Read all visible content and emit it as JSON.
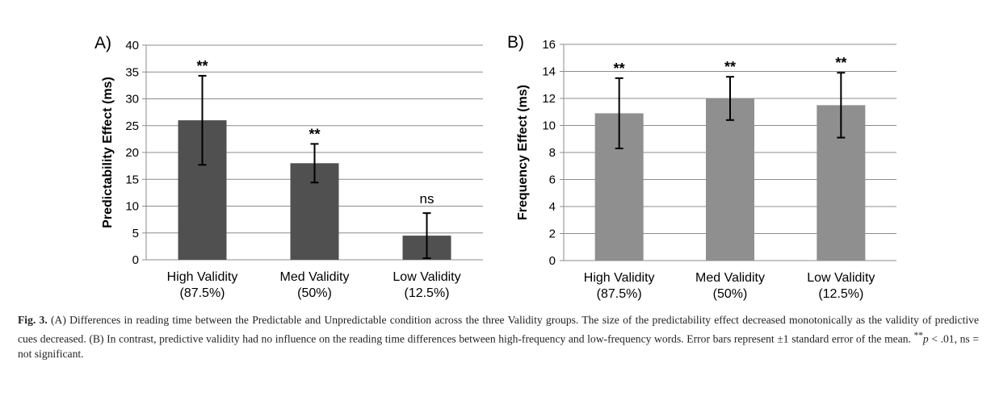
{
  "chart_data": [
    {
      "type": "bar",
      "panel": "A)",
      "ylabel": "Predictability Effect (ms)",
      "categories": [
        [
          "High Validity",
          "(87.5%)"
        ],
        [
          "Med Validity",
          "(50%)"
        ],
        [
          "Low Validity",
          "(12.5%)"
        ]
      ],
      "values": [
        26,
        18,
        4.5
      ],
      "errors": [
        8.3,
        3.6,
        4.2
      ],
      "significance": [
        "**",
        "**",
        "ns"
      ],
      "ylim": [
        0,
        40
      ],
      "yticks": [
        0,
        5,
        10,
        15,
        20,
        25,
        30,
        35,
        40
      ],
      "grid": true,
      "bar_color": "#505050"
    },
    {
      "type": "bar",
      "panel": "B)",
      "ylabel": "Frequency Effect (ms)",
      "categories": [
        [
          "High Validity",
          "(87.5%)"
        ],
        [
          "Med Validity",
          "(50%)"
        ],
        [
          "Low Validity",
          "(12.5%)"
        ]
      ],
      "values": [
        10.9,
        12.0,
        11.5
      ],
      "errors": [
        2.6,
        1.6,
        2.4
      ],
      "significance": [
        "**",
        "**",
        "**"
      ],
      "ylim": [
        0,
        16
      ],
      "yticks": [
        0,
        2,
        4,
        6,
        8,
        10,
        12,
        14,
        16
      ],
      "grid": true,
      "bar_color": "#8f8f8f"
    }
  ],
  "caption": {
    "label": "Fig. 3.",
    "text": " (A) Differences in reading time between the Predictable and Unpredictable condition across the three Validity groups. The size of the predictability effect decreased monotonically as the validity of predictive cues decreased. (B) In contrast, predictive validity had no influence on the reading time differences between high-frequency and low-frequency words. Error bars represent ±1 standard error of the mean. ",
    "sig_marker": "**",
    "p_symbol": "p",
    "tail": " < .01, ns = not significant."
  }
}
